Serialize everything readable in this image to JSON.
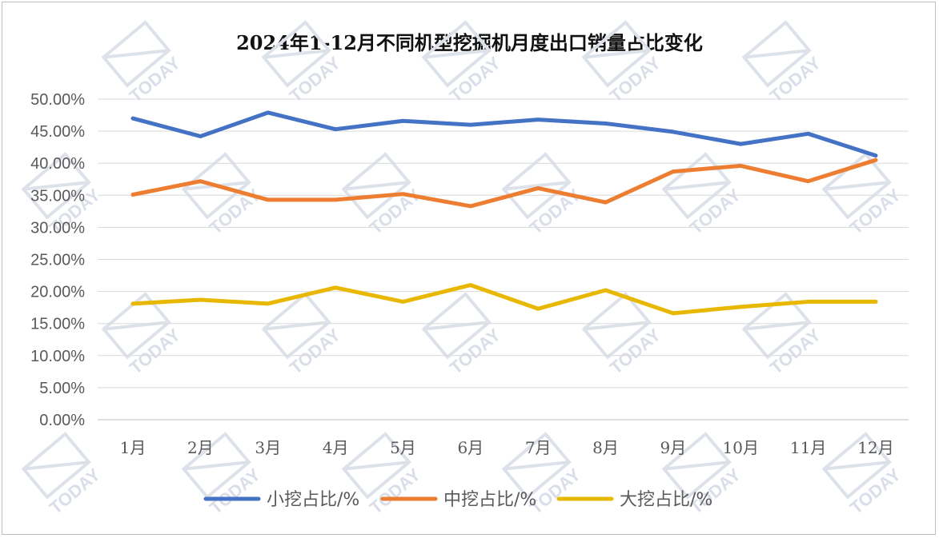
{
  "chart_data": {
    "type": "line",
    "title": "2024年1-12月不同机型挖掘机月度出口销量占比变化",
    "categories": [
      "1月",
      "2月",
      "3月",
      "4月",
      "5月",
      "6月",
      "7月",
      "8月",
      "9月",
      "10月",
      "11月",
      "12月"
    ],
    "y_ticks": [
      "0.00%",
      "5.00%",
      "10.00%",
      "15.00%",
      "20.00%",
      "25.00%",
      "30.00%",
      "35.00%",
      "40.00%",
      "45.00%",
      "50.00%"
    ],
    "ylim": [
      0,
      50
    ],
    "grid": true,
    "legend_position": "bottom",
    "series": [
      {
        "name": "小挖占比/%",
        "color": "#4472C4",
        "values": [
          47.0,
          44.2,
          47.9,
          45.3,
          46.6,
          46.0,
          46.8,
          46.2,
          44.9,
          43.0,
          44.6,
          41.2
        ]
      },
      {
        "name": "中挖占比/%",
        "color": "#ED7D31",
        "values": [
          35.1,
          37.2,
          34.3,
          34.3,
          35.2,
          33.3,
          36.1,
          33.9,
          38.7,
          39.6,
          37.2,
          40.5
        ]
      },
      {
        "name": "大挖占比/%",
        "color": "#E8B800",
        "values": [
          18.1,
          18.7,
          18.1,
          20.6,
          18.4,
          21.0,
          17.3,
          20.2,
          16.6,
          17.6,
          18.4,
          18.4
        ]
      }
    ]
  },
  "watermark": {
    "text": "TODAY"
  }
}
